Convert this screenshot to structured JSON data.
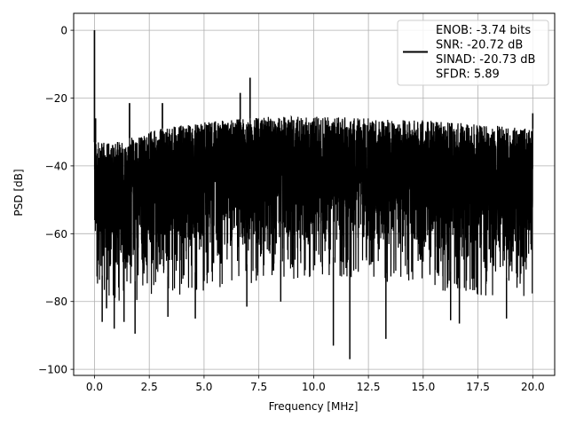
{
  "chart_data": {
    "type": "line",
    "title": "",
    "xlabel": "Frequency [MHz]",
    "ylabel": "PSD [dB]",
    "xlim": [
      -0.95,
      21.0
    ],
    "ylim": [
      -101.8,
      5.0
    ],
    "xticks": [
      0.0,
      2.5,
      5.0,
      7.5,
      10.0,
      12.5,
      15.0,
      17.5,
      20.0
    ],
    "xtick_labels": [
      "0.0",
      "2.5",
      "5.0",
      "7.5",
      "10.0",
      "12.5",
      "15.0",
      "17.5",
      "20.0"
    ],
    "yticks": [
      0,
      -20,
      -40,
      -60,
      -80,
      -100
    ],
    "ytick_labels": [
      "0",
      "−20",
      "−40",
      "−60",
      "−80",
      "−100"
    ],
    "grid": true,
    "legend_position": "top-right",
    "legend_entries": [
      "ENOB: -3.74 bits",
      "SNR: -20.72 dB",
      "SINAD: -20.73 dB",
      "SFDR: 5.89"
    ],
    "series": [
      {
        "color": "#000000",
        "x_range": [
          0.0,
          20.0
        ],
        "description_envelope": {
          "upper_x": [
            0.0,
            0.2,
            1.0,
            2.0,
            3.0,
            4.0,
            5.0,
            6.0,
            7.0,
            8.0,
            9.0,
            10.0,
            11.0,
            12.0,
            13.0,
            14.0,
            15.0,
            16.0,
            17.0,
            18.0,
            19.0,
            20.0
          ],
          "upper_y": [
            -33,
            -33,
            -33,
            -31,
            -29,
            -28,
            -27,
            -26.5,
            -26,
            -25.5,
            -25.5,
            -25.5,
            -25.5,
            -25.5,
            -26,
            -26.5,
            -26.5,
            -27,
            -27.5,
            -28,
            -28.5,
            -29
          ],
          "lower_y": [
            -70,
            -72,
            -74,
            -74,
            -73,
            -72,
            -71,
            -70,
            -69,
            -68,
            -67.5,
            -67,
            -67,
            -67,
            -68,
            -69,
            -70,
            -71,
            -72,
            -73,
            -73,
            -72
          ]
        },
        "peaks": [
          {
            "x": 0.0,
            "y": 0.0
          },
          {
            "x": 0.05,
            "y": -26.0
          },
          {
            "x": 1.6,
            "y": -21.5
          },
          {
            "x": 3.1,
            "y": -21.5
          },
          {
            "x": 6.65,
            "y": -18.5
          },
          {
            "x": 7.1,
            "y": -14.0
          },
          {
            "x": 20.0,
            "y": -24.5
          }
        ],
        "dips": [
          {
            "x": 0.35,
            "y": -86.0
          },
          {
            "x": 0.55,
            "y": -82.0
          },
          {
            "x": 0.9,
            "y": -88.0
          },
          {
            "x": 1.35,
            "y": -86.0
          },
          {
            "x": 1.85,
            "y": -89.5
          },
          {
            "x": 3.35,
            "y": -84.5
          },
          {
            "x": 4.6,
            "y": -85.0
          },
          {
            "x": 6.95,
            "y": -81.5
          },
          {
            "x": 8.5,
            "y": -80.0
          },
          {
            "x": 10.9,
            "y": -93.0
          },
          {
            "x": 11.65,
            "y": -97.0
          },
          {
            "x": 13.3,
            "y": -91.0
          },
          {
            "x": 16.25,
            "y": -85.5
          },
          {
            "x": 16.65,
            "y": -86.5
          },
          {
            "x": 18.8,
            "y": -85.0
          }
        ]
      }
    ]
  }
}
